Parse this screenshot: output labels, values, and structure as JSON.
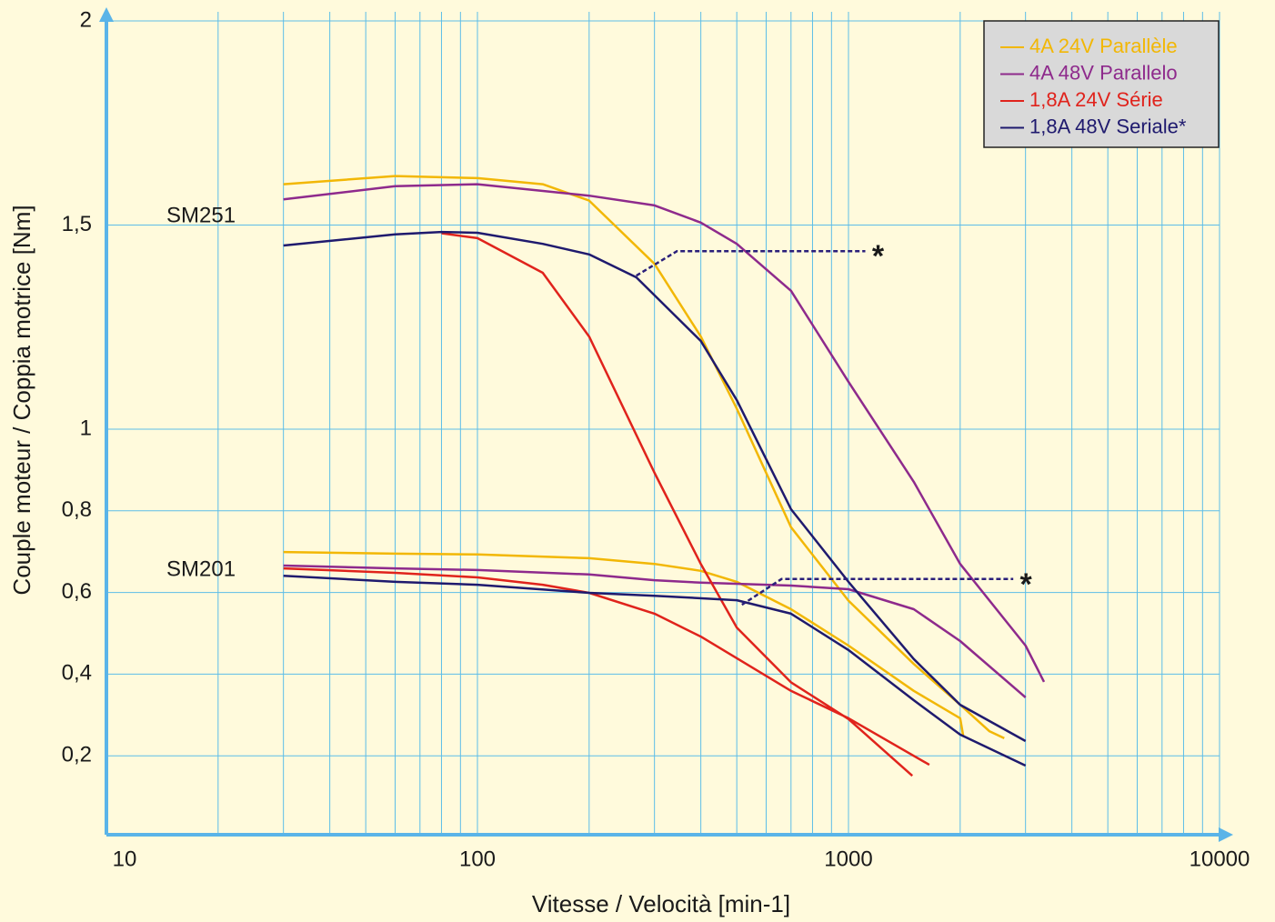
{
  "chart_data": {
    "type": "line",
    "x_label": "Vitesse / Velocità [min-1]",
    "y_label": "Couple moteur / Coppia motrice [Nm]",
    "xlog": true,
    "xlim": [
      10,
      10000
    ],
    "xticks": [
      10,
      100,
      1000,
      10000
    ],
    "ylim": [
      0,
      2
    ],
    "yticks": [
      {
        "value": 0.2,
        "label": "0,2"
      },
      {
        "value": 0.4,
        "label": "0,4"
      },
      {
        "value": 0.6,
        "label": "0,6"
      },
      {
        "value": 0.8,
        "label": "0,8"
      },
      1,
      {
        "value": 1.5,
        "label": "1,5"
      },
      2
    ],
    "grid": true,
    "legend": "upper right",
    "series": [
      {
        "name": "4A 24V Parallèle",
        "color": "#f2b705",
        "x": [
          30,
          60,
          100,
          150,
          200,
          300,
          400,
          500,
          700,
          1000,
          1500,
          2000,
          2400,
          2630,
          null,
          30,
          60,
          100,
          200,
          300,
          400,
          500,
          700,
          1000,
          1500,
          2000,
          2040
        ],
        "values": [
          1.6,
          1.62,
          1.615,
          1.6,
          1.56,
          1.405,
          1.227,
          1.05,
          0.76,
          0.58,
          0.425,
          0.325,
          0.26,
          0.243,
          null,
          0.699,
          0.695,
          0.693,
          0.684,
          0.67,
          0.653,
          0.626,
          0.559,
          0.47,
          0.359,
          0.292,
          0.247
        ]
      },
      {
        "name": "4A 48V Parallelo",
        "color": "#8e2a8c",
        "x": [
          30,
          60,
          100,
          200,
          300,
          400,
          500,
          700,
          1000,
          1500,
          2000,
          3000,
          3365,
          null,
          30,
          60,
          100,
          200,
          300,
          400,
          700,
          1000,
          1500,
          2000,
          3000
        ],
        "values": [
          1.563,
          1.595,
          1.6,
          1.572,
          1.548,
          1.506,
          1.454,
          1.339,
          1.116,
          0.871,
          0.67,
          0.47,
          0.381,
          null,
          0.666,
          0.659,
          0.655,
          0.644,
          0.63,
          0.624,
          0.617,
          0.608,
          0.559,
          0.481,
          0.343
        ]
      },
      {
        "name": "1,8A 24V Série",
        "color": "#e0231c",
        "x": [
          80,
          100,
          150,
          200,
          300,
          400,
          500,
          700,
          1000,
          1486,
          null,
          30,
          60,
          100,
          150,
          200,
          300,
          400,
          700,
          1000,
          1652
        ],
        "values": [
          1.48,
          1.468,
          1.383,
          1.227,
          0.893,
          0.67,
          0.514,
          0.38,
          0.29,
          0.151,
          null,
          0.659,
          0.648,
          0.637,
          0.619,
          0.599,
          0.548,
          0.492,
          0.359,
          0.292,
          0.178
        ]
      },
      {
        "name": "1,8A 48V Seriale*",
        "color": "#1f1a6e",
        "x": [
          30,
          60,
          80,
          100,
          150,
          200,
          268,
          400,
          500,
          700,
          1000,
          1500,
          2000,
          3000,
          null,
          30,
          60,
          100,
          200,
          300,
          500,
          700,
          1000,
          1500,
          2000,
          3000
        ],
        "values": [
          1.45,
          1.477,
          1.483,
          1.481,
          1.454,
          1.428,
          1.372,
          1.216,
          1.071,
          0.804,
          0.626,
          0.437,
          0.325,
          0.236,
          null,
          0.641,
          0.626,
          0.619,
          0.599,
          0.592,
          0.581,
          0.548,
          0.459,
          0.336,
          0.252,
          0.176
        ]
      }
    ],
    "limit_lines": [
      {
        "color": "#2a1f7a",
        "x": [
          268,
          345,
          1110
        ],
        "values": [
          1.376,
          1.436,
          1.436
        ],
        "marker": "*"
      },
      {
        "color": "#2a1f7a",
        "x": [
          516,
          660,
          2780
        ],
        "values": [
          0.57,
          0.633,
          0.633
        ],
        "marker": "*"
      }
    ],
    "annotations": [
      "SM251",
      "SM201"
    ]
  }
}
